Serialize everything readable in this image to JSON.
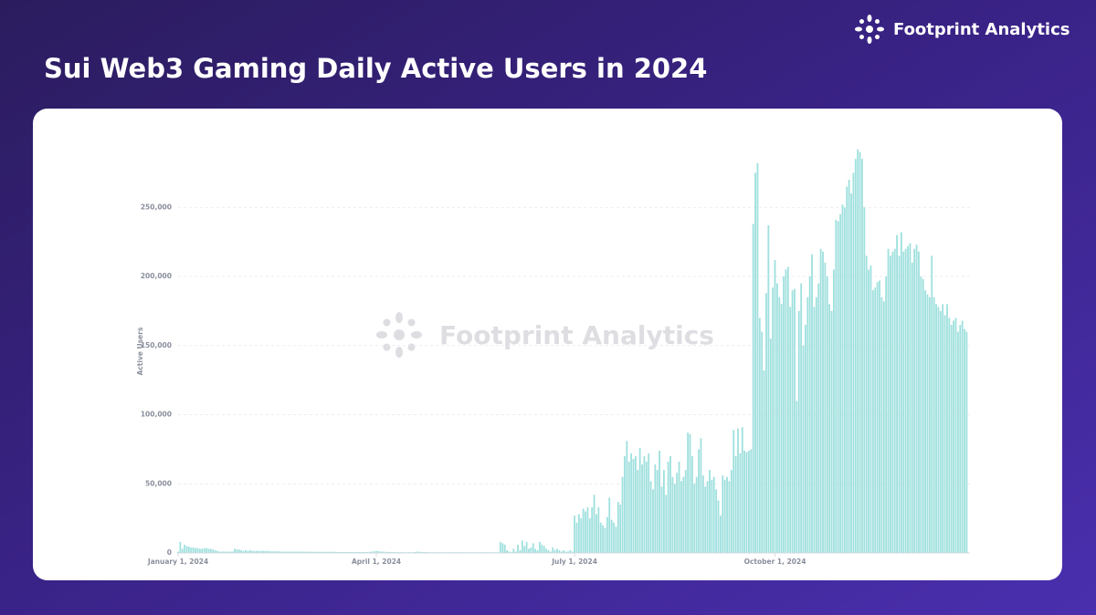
{
  "brand": "Footprint Analytics",
  "chart_data": {
    "type": "bar",
    "title": "Sui Web3 Gaming Daily Active Users in 2024",
    "watermark": "Footprint Analytics",
    "y_label": "Active Users",
    "color": "#9fe0de",
    "grid": true,
    "ylim": [
      0,
      300000
    ],
    "yticks": [
      0,
      {
        "value": 50000,
        "label": "50,000"
      },
      {
        "value": 100000,
        "label": "100,000"
      },
      {
        "value": 150000,
        "label": "150,000"
      },
      {
        "value": 200000,
        "label": "200,000"
      },
      {
        "value": 250000,
        "label": "250,000"
      }
    ],
    "xticks": [
      {
        "value": "2024-01-01",
        "label": "January 1, 2024"
      },
      {
        "value": "2024-04-01",
        "label": "April 1, 2024"
      },
      {
        "value": "2024-07-01",
        "label": "July 1, 2024"
      },
      {
        "value": "2024-10-01",
        "label": "October 1, 2024"
      }
    ],
    "x": [
      "2024-01-01",
      "2024-01-02",
      "2024-01-03",
      "2024-01-04",
      "2024-01-05",
      "2024-01-06",
      "2024-01-07",
      "2024-01-08",
      "2024-01-09",
      "2024-01-10",
      "2024-01-11",
      "2024-01-12",
      "2024-01-13",
      "2024-01-14",
      "2024-01-15",
      "2024-01-16",
      "2024-01-17",
      "2024-01-18",
      "2024-01-19",
      "2024-01-20",
      "2024-01-21",
      "2024-01-22",
      "2024-01-23",
      "2024-01-24",
      "2024-01-25",
      "2024-01-26",
      "2024-01-27",
      "2024-01-28",
      "2024-01-29",
      "2024-01-30",
      "2024-01-31",
      "2024-02-01",
      "2024-02-02",
      "2024-02-03",
      "2024-02-04",
      "2024-02-05",
      "2024-02-06",
      "2024-02-07",
      "2024-02-08",
      "2024-02-09",
      "2024-02-10",
      "2024-02-11",
      "2024-02-12",
      "2024-02-13",
      "2024-02-14",
      "2024-02-15",
      "2024-02-16",
      "2024-02-17",
      "2024-02-18",
      "2024-02-19",
      "2024-02-20",
      "2024-02-21",
      "2024-02-22",
      "2024-02-23",
      "2024-02-24",
      "2024-02-25",
      "2024-02-26",
      "2024-02-27",
      "2024-02-28",
      "2024-02-29",
      "2024-03-01",
      "2024-03-02",
      "2024-03-03",
      "2024-03-04",
      "2024-03-05",
      "2024-03-06",
      "2024-03-07",
      "2024-03-08",
      "2024-03-09",
      "2024-03-10",
      "2024-03-11",
      "2024-03-12",
      "2024-03-13",
      "2024-03-14",
      "2024-03-15",
      "2024-03-16",
      "2024-03-17",
      "2024-03-18",
      "2024-03-19",
      "2024-03-20",
      "2024-03-21",
      "2024-03-22",
      "2024-03-23",
      "2024-03-24",
      "2024-03-25",
      "2024-03-26",
      "2024-03-27",
      "2024-03-28",
      "2024-03-29",
      "2024-03-30",
      "2024-03-31",
      "2024-04-01",
      "2024-04-02",
      "2024-04-03",
      "2024-04-04",
      "2024-04-05",
      "2024-04-06",
      "2024-04-07",
      "2024-04-08",
      "2024-04-09",
      "2024-04-10",
      "2024-04-11",
      "2024-04-12",
      "2024-04-13",
      "2024-04-14",
      "2024-04-15",
      "2024-04-16",
      "2024-04-17",
      "2024-04-18",
      "2024-04-19",
      "2024-04-20",
      "2024-04-21",
      "2024-04-22",
      "2024-04-23",
      "2024-04-24",
      "2024-04-25",
      "2024-04-26",
      "2024-04-27",
      "2024-04-28",
      "2024-04-29",
      "2024-04-30",
      "2024-05-01",
      "2024-05-02",
      "2024-05-03",
      "2024-05-04",
      "2024-05-05",
      "2024-05-06",
      "2024-05-07",
      "2024-05-08",
      "2024-05-09",
      "2024-05-10",
      "2024-05-11",
      "2024-05-12",
      "2024-05-13",
      "2024-05-14",
      "2024-05-15",
      "2024-05-16",
      "2024-05-17",
      "2024-05-18",
      "2024-05-19",
      "2024-05-20",
      "2024-05-21",
      "2024-05-22",
      "2024-05-23",
      "2024-05-24",
      "2024-05-25",
      "2024-05-26",
      "2024-05-27",
      "2024-05-28",
      "2024-05-29",
      "2024-05-30",
      "2024-05-31",
      "2024-06-01",
      "2024-06-02",
      "2024-06-03",
      "2024-06-04",
      "2024-06-05",
      "2024-06-06",
      "2024-06-07",
      "2024-06-08",
      "2024-06-09",
      "2024-06-10",
      "2024-06-11",
      "2024-06-12",
      "2024-06-13",
      "2024-06-14",
      "2024-06-15",
      "2024-06-16",
      "2024-06-17",
      "2024-06-18",
      "2024-06-19",
      "2024-06-20",
      "2024-06-21",
      "2024-06-22",
      "2024-06-23",
      "2024-06-24",
      "2024-06-25",
      "2024-06-26",
      "2024-06-27",
      "2024-06-28",
      "2024-06-29",
      "2024-06-30",
      "2024-07-01",
      "2024-07-02",
      "2024-07-03",
      "2024-07-04",
      "2024-07-05",
      "2024-07-06",
      "2024-07-07",
      "2024-07-08",
      "2024-07-09",
      "2024-07-10",
      "2024-07-11",
      "2024-07-12",
      "2024-07-13",
      "2024-07-14",
      "2024-07-15",
      "2024-07-16",
      "2024-07-17",
      "2024-07-18",
      "2024-07-19",
      "2024-07-20",
      "2024-07-21",
      "2024-07-22",
      "2024-07-23",
      "2024-07-24",
      "2024-07-25",
      "2024-07-26",
      "2024-07-27",
      "2024-07-28",
      "2024-07-29",
      "2024-07-30",
      "2024-07-31",
      "2024-08-01",
      "2024-08-02",
      "2024-08-03",
      "2024-08-04",
      "2024-08-05",
      "2024-08-06",
      "2024-08-07",
      "2024-08-08",
      "2024-08-09",
      "2024-08-10",
      "2024-08-11",
      "2024-08-12",
      "2024-08-13",
      "2024-08-14",
      "2024-08-15",
      "2024-08-16",
      "2024-08-17",
      "2024-08-18",
      "2024-08-19",
      "2024-08-20",
      "2024-08-21",
      "2024-08-22",
      "2024-08-23",
      "2024-08-24",
      "2024-08-25",
      "2024-08-26",
      "2024-08-27",
      "2024-08-28",
      "2024-08-29",
      "2024-08-30",
      "2024-08-31",
      "2024-09-01",
      "2024-09-02",
      "2024-09-03",
      "2024-09-04",
      "2024-09-05",
      "2024-09-06",
      "2024-09-07",
      "2024-09-08",
      "2024-09-09",
      "2024-09-10",
      "2024-09-11",
      "2024-09-12",
      "2024-09-13",
      "2024-09-14",
      "2024-09-15",
      "2024-09-16",
      "2024-09-17",
      "2024-09-18",
      "2024-09-19",
      "2024-09-20",
      "2024-09-21",
      "2024-09-22",
      "2024-09-23",
      "2024-09-24",
      "2024-09-25",
      "2024-09-26",
      "2024-09-27",
      "2024-09-28",
      "2024-09-29",
      "2024-09-30",
      "2024-10-01",
      "2024-10-02",
      "2024-10-03",
      "2024-10-04",
      "2024-10-05",
      "2024-10-06",
      "2024-10-07",
      "2024-10-08",
      "2024-10-09",
      "2024-10-10",
      "2024-10-11",
      "2024-10-12",
      "2024-10-13",
      "2024-10-14",
      "2024-10-15",
      "2024-10-16",
      "2024-10-17",
      "2024-10-18",
      "2024-10-19",
      "2024-10-20",
      "2024-10-21",
      "2024-10-22",
      "2024-10-23",
      "2024-10-24",
      "2024-10-25",
      "2024-10-26",
      "2024-10-27",
      "2024-10-28",
      "2024-10-29",
      "2024-10-30",
      "2024-10-31",
      "2024-11-01",
      "2024-11-02",
      "2024-11-03",
      "2024-11-04",
      "2024-11-05",
      "2024-11-06",
      "2024-11-07",
      "2024-11-08",
      "2024-11-09",
      "2024-11-10",
      "2024-11-11",
      "2024-11-12",
      "2024-11-13",
      "2024-11-14",
      "2024-11-15",
      "2024-11-16",
      "2024-11-17",
      "2024-11-18",
      "2024-11-19",
      "2024-11-20",
      "2024-11-21",
      "2024-11-22",
      "2024-11-23",
      "2024-11-24",
      "2024-11-25",
      "2024-11-26",
      "2024-11-27",
      "2024-11-28",
      "2024-11-29",
      "2024-11-30",
      "2024-12-01",
      "2024-12-02",
      "2024-12-03",
      "2024-12-04",
      "2024-12-05",
      "2024-12-06",
      "2024-12-07",
      "2024-12-08",
      "2024-12-09",
      "2024-12-10",
      "2024-12-11",
      "2024-12-12",
      "2024-12-13",
      "2024-12-14",
      "2024-12-15",
      "2024-12-16",
      "2024-12-17",
      "2024-12-18",
      "2024-12-19",
      "2024-12-20",
      "2024-12-21",
      "2024-12-22",
      "2024-12-23",
      "2024-12-24",
      "2024-12-25",
      "2024-12-26",
      "2024-12-27",
      "2024-12-28"
    ],
    "values": [
      1000,
      8000,
      3000,
      6000,
      5000,
      4500,
      4000,
      4000,
      3500,
      3500,
      3000,
      3000,
      3500,
      3500,
      3000,
      3000,
      2500,
      2000,
      1500,
      1000,
      1000,
      1000,
      1000,
      1000,
      1000,
      1000,
      3000,
      2500,
      2500,
      2000,
      1500,
      2000,
      1500,
      2000,
      1500,
      1500,
      1500,
      1500,
      1500,
      1500,
      1500,
      1500,
      1200,
      1200,
      1200,
      1200,
      1200,
      1000,
      1000,
      1000,
      1000,
      1000,
      1000,
      1000,
      1000,
      1000,
      1000,
      1000,
      900,
      900,
      900,
      900,
      900,
      800,
      800,
      800,
      800,
      800,
      800,
      800,
      800,
      800,
      800,
      700,
      700,
      700,
      700,
      700,
      700,
      700,
      700,
      700,
      700,
      700,
      700,
      700,
      700,
      700,
      800,
      1000,
      1200,
      1500,
      1200,
      1000,
      1000,
      800,
      800,
      700,
      700,
      600,
      600,
      600,
      600,
      500,
      500,
      500,
      500,
      500,
      500,
      800,
      1000,
      800,
      600,
      600,
      600,
      500,
      500,
      500,
      500,
      500,
      500,
      500,
      500,
      500,
      500,
      500,
      500,
      500,
      500,
      500,
      500,
      500,
      500,
      500,
      500,
      500,
      500,
      500,
      500,
      500,
      500,
      500,
      500,
      500,
      500,
      500,
      500,
      500,
      8000,
      7000,
      6000,
      2000,
      1000,
      500,
      3000,
      1000,
      6000,
      2000,
      9000,
      5000,
      8000,
      3000,
      4000,
      7000,
      3000,
      2000,
      8000,
      6000,
      5000,
      3000,
      2000,
      1000,
      4000,
      2000,
      3000,
      2000,
      1000,
      2000,
      1000,
      1000,
      2000,
      1000,
      27000,
      22000,
      28000,
      25000,
      32000,
      30000,
      33000,
      25000,
      33000,
      42000,
      28000,
      33000,
      22000,
      20000,
      18000,
      26000,
      40000,
      24000,
      22000,
      19000,
      37000,
      35000,
      55000,
      70000,
      81000,
      66000,
      72000,
      68000,
      70000,
      60000,
      76000,
      64000,
      70000,
      66000,
      72000,
      52000,
      46000,
      64000,
      60000,
      74000,
      48000,
      60000,
      42000,
      66000,
      70000,
      55000,
      50000,
      58000,
      66000,
      52000,
      55000,
      60000,
      87000,
      86000,
      70000,
      50000,
      55000,
      75000,
      83000,
      56000,
      48000,
      52000,
      60000,
      53000,
      55000,
      46000,
      38000,
      27000,
      56000,
      53000,
      55000,
      52000,
      60000,
      89000,
      70000,
      90000,
      72000,
      91000,
      74000,
      73000,
      74000,
      75000,
      238000,
      275000,
      282000,
      170000,
      160000,
      132000,
      188000,
      237000,
      155000,
      192000,
      212000,
      195000,
      185000,
      180000,
      200000,
      205000,
      207000,
      178000,
      190000,
      191000,
      110000,
      175000,
      195000,
      150000,
      165000,
      185000,
      200000,
      216000,
      178000,
      185000,
      195000,
      220000,
      218000,
      210000,
      200000,
      180000,
      175000,
      205000,
      241000,
      240000,
      245000,
      252000,
      250000,
      265000,
      270000,
      260000,
      275000,
      285000,
      292000,
      290000,
      285000,
      250000,
      215000,
      205000,
      208000,
      190000,
      192000,
      196000,
      197000,
      185000,
      182000,
      200000,
      220000,
      215000,
      218000,
      220000,
      230000,
      215000,
      232000,
      218000,
      220000,
      222000,
      224000,
      210000,
      220000,
      223000,
      218000,
      200000,
      198000,
      190000,
      187000,
      185000,
      215000,
      185000,
      180000,
      178000,
      175000,
      180000,
      172000,
      180000,
      170000,
      165000,
      168000,
      170000,
      160000,
      165000,
      168000,
      162000,
      160000
    ]
  }
}
